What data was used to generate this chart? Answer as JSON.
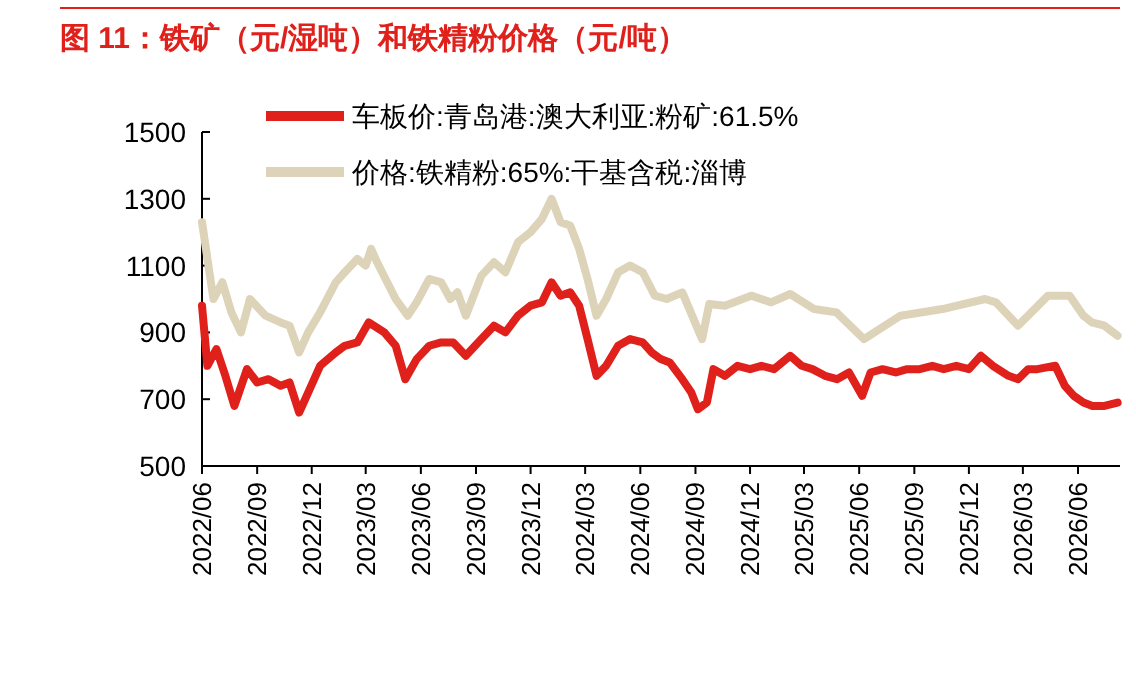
{
  "chart_data": {
    "type": "line",
    "title": "图 11：铁矿（元/湿吨）和铁精粉价格（元/吨）",
    "xlim": [
      "2022-06-01",
      "2026-08-10"
    ],
    "xticks": [
      {
        "value": "2022-06",
        "label": "2022/06"
      },
      {
        "value": "2022-09",
        "label": "2022/09"
      },
      {
        "value": "2022-12",
        "label": "2022/12"
      },
      {
        "value": "2023-03",
        "label": "2023/03"
      },
      {
        "value": "2023-06",
        "label": "2023/06"
      },
      {
        "value": "2023-09",
        "label": "2023/09"
      },
      {
        "value": "2023-12",
        "label": "2023/12"
      },
      {
        "value": "2024-03",
        "label": "2024/03"
      },
      {
        "value": "2024-06",
        "label": "2024/06"
      },
      {
        "value": "2024-09",
        "label": "2024/09"
      },
      {
        "value": "2024-12",
        "label": "2024/12"
      },
      {
        "value": "2025-03",
        "label": "2025/03"
      },
      {
        "value": "2025-06",
        "label": "2025/06"
      },
      {
        "value": "2025-09",
        "label": "2025/09"
      },
      {
        "value": "2025-12",
        "label": "2025/12"
      },
      {
        "value": "2026-03",
        "label": "2026/03"
      },
      {
        "value": "2026-06",
        "label": "2026/06"
      }
    ],
    "ylim": [
      500,
      1500
    ],
    "yticks": [
      500,
      700,
      900,
      1100,
      1300,
      1500
    ],
    "grid": false,
    "legend": "top",
    "marker": "none",
    "line_style": "solid",
    "series": [
      {
        "name": "车板价:青岛港:澳大利亚:粉矿:61.5%",
        "color": "#e0201b",
        "x": [
          "2022-06-01",
          "2022-06-10",
          "2022-06-25",
          "2022-07-10",
          "2022-07-25",
          "2022-08-15",
          "2022-09-01",
          "2022-09-20",
          "2022-10-10",
          "2022-10-25",
          "2022-11-10",
          "2022-11-25",
          "2022-12-15",
          "2023-01-10",
          "2023-01-25",
          "2023-02-15",
          "2023-03-06",
          "2023-04-01",
          "2023-04-20",
          "2023-05-06",
          "2023-05-25",
          "2023-06-15",
          "2023-07-05",
          "2023-07-25",
          "2023-08-15",
          "2023-09-10",
          "2023-10-01",
          "2023-10-20",
          "2023-11-10",
          "2023-12-01",
          "2023-12-20",
          "2024-01-05",
          "2024-01-20",
          "2024-02-05",
          "2024-02-20",
          "2024-03-05",
          "2024-03-20",
          "2024-04-05",
          "2024-04-25",
          "2024-05-15",
          "2024-06-05",
          "2024-06-20",
          "2024-07-05",
          "2024-07-20",
          "2024-08-10",
          "2024-08-25",
          "2024-09-05",
          "2024-09-20",
          "2024-10-01",
          "2024-10-20",
          "2024-11-10",
          "2024-12-01",
          "2024-12-20",
          "2025-01-10",
          "2025-02-06",
          "2025-02-25",
          "2025-03-15",
          "2025-04-05",
          "2025-04-25",
          "2025-05-15",
          "2025-06-06",
          "2025-06-20",
          "2025-07-10",
          "2025-08-01",
          "2025-08-20",
          "2025-09-10",
          "2025-10-01",
          "2025-10-20",
          "2025-11-10",
          "2025-12-01",
          "2025-12-21",
          "2026-01-10",
          "2026-02-05",
          "2026-02-21",
          "2026-03-10",
          "2026-03-25",
          "2026-04-24",
          "2026-05-10",
          "2026-05-25",
          "2026-06-10",
          "2026-06-25",
          "2026-07-15",
          "2026-08-06"
        ],
        "values": [
          980,
          800,
          850,
          770,
          680,
          790,
          750,
          760,
          740,
          750,
          660,
          720,
          800,
          840,
          860,
          870,
          930,
          900,
          860,
          760,
          820,
          860,
          870,
          870,
          830,
          880,
          920,
          900,
          950,
          980,
          990,
          1050,
          1010,
          1020,
          980,
          880,
          770,
          800,
          860,
          880,
          870,
          840,
          820,
          810,
          760,
          720,
          670,
          690,
          790,
          770,
          800,
          790,
          800,
          790,
          830,
          800,
          790,
          770,
          760,
          780,
          710,
          780,
          790,
          780,
          790,
          790,
          800,
          790,
          800,
          790,
          830,
          800,
          770,
          760,
          790,
          790,
          800,
          740,
          710,
          690,
          680,
          680,
          690
        ]
      },
      {
        "name": "价格:铁精粉:65%:干基含税:淄博",
        "color": "#ddd3b8",
        "x": [
          "2022-06-01",
          "2022-06-20",
          "2022-07-05",
          "2022-07-20",
          "2022-08-05",
          "2022-08-20",
          "2022-09-15",
          "2022-10-10",
          "2022-10-25",
          "2022-11-10",
          "2022-11-25",
          "2022-12-15",
          "2023-01-10",
          "2023-01-25",
          "2023-02-15",
          "2023-03-01",
          "2023-03-10",
          "2023-03-20",
          "2023-04-20",
          "2023-05-10",
          "2023-05-25",
          "2023-06-15",
          "2023-07-05",
          "2023-07-20",
          "2023-08-01",
          "2023-08-15",
          "2023-09-10",
          "2023-10-01",
          "2023-10-20",
          "2023-11-10",
          "2023-12-01",
          "2023-12-20",
          "2024-01-05",
          "2024-01-20",
          "2024-02-05",
          "2024-02-20",
          "2024-03-05",
          "2024-03-20",
          "2024-04-05",
          "2024-04-25",
          "2024-05-15",
          "2024-06-05",
          "2024-06-25",
          "2024-07-15",
          "2024-08-10",
          "2024-09-12",
          "2024-09-24",
          "2024-10-20",
          "2024-12-03",
          "2025-01-05",
          "2025-02-06",
          "2025-03-18",
          "2025-04-24",
          "2025-06-09",
          "2025-08-09",
          "2025-10-18",
          "2025-12-28",
          "2026-01-15",
          "2026-02-21",
          "2026-04-12",
          "2026-05-18",
          "2026-06-10",
          "2026-06-24",
          "2026-07-15",
          "2026-08-06"
        ],
        "values": [
          1230,
          1000,
          1050,
          960,
          900,
          1000,
          950,
          930,
          920,
          840,
          900,
          960,
          1050,
          1080,
          1120,
          1100,
          1150,
          1110,
          1000,
          950,
          990,
          1060,
          1050,
          1000,
          1020,
          950,
          1070,
          1110,
          1080,
          1170,
          1200,
          1240,
          1300,
          1230,
          1220,
          1150,
          1060,
          950,
          1000,
          1080,
          1100,
          1080,
          1010,
          1000,
          1020,
          880,
          985,
          980,
          1010,
          990,
          1015,
          970,
          960,
          880,
          950,
          970,
          1000,
          990,
          920,
          1010,
          1010,
          950,
          930,
          920,
          890
        ]
      }
    ]
  }
}
